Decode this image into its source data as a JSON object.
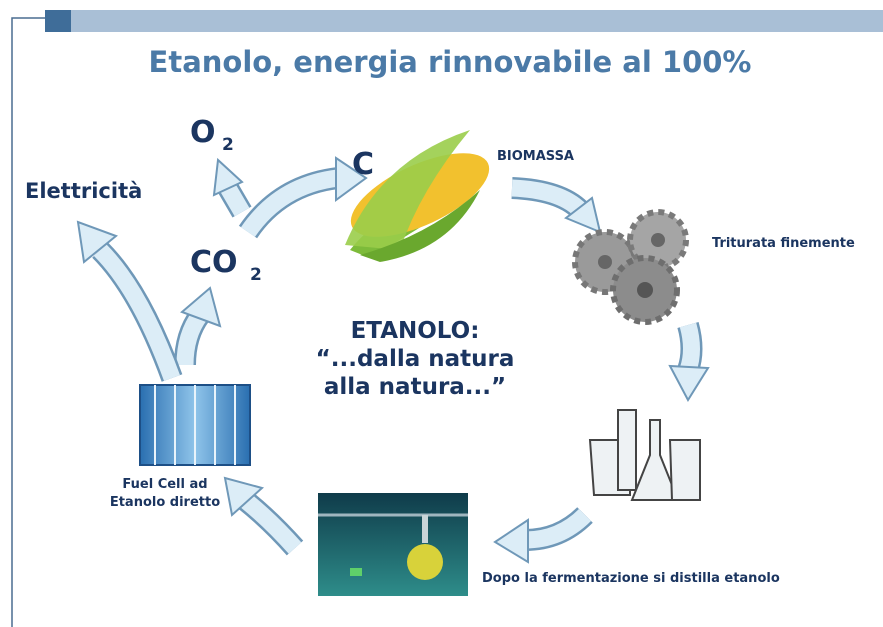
{
  "header": {
    "title": "Etanolo, energia rinnovabile al 100%"
  },
  "nodes": [
    {
      "symbol": "O",
      "subscript": "2"
    },
    {
      "symbol": "C"
    },
    {
      "label": "BIOMASSA"
    },
    {
      "label": "Triturata finemente"
    },
    {
      "label": "Dopo la fermentazione si distilla etanolo"
    },
    {
      "lines": [
        "Fuel Cell ad",
        "Etanolo diretto"
      ]
    },
    {
      "label": "Elettricità"
    },
    {
      "symbol": "CO",
      "subscript": "2"
    }
  ],
  "center": {
    "lines": [
      "ETANOLO:",
      "“...dalla natura",
      "alla natura...”"
    ]
  }
}
